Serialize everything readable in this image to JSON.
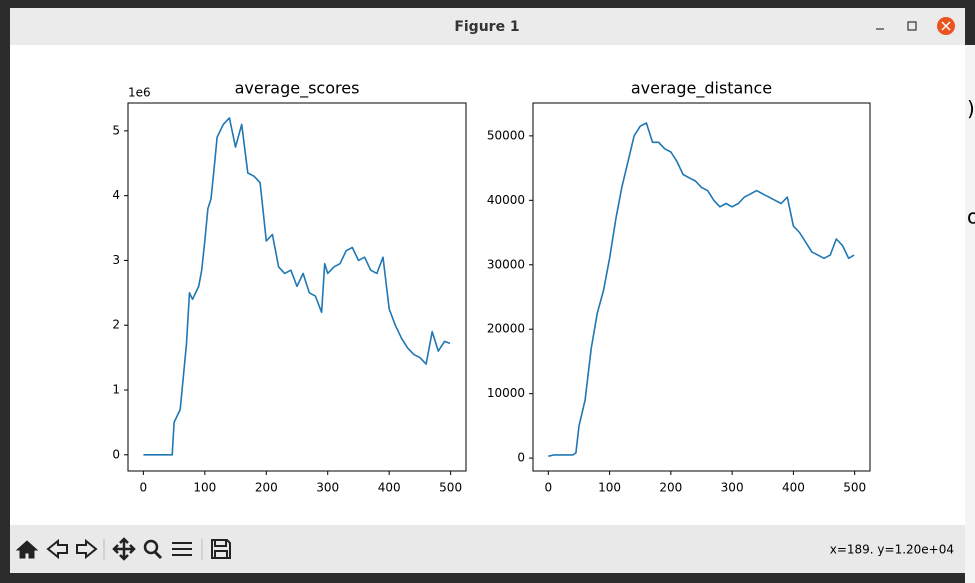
{
  "window": {
    "title": "Figure 1",
    "status": "x=189. y=1.20e+04",
    "background_fragments": [
      ")",
      "o"
    ]
  },
  "chart_data": [
    {
      "type": "line",
      "title": "average_scores",
      "offset_label": "1e6",
      "x": [
        0,
        10,
        20,
        30,
        40,
        47,
        50,
        60,
        65,
        70,
        75,
        80,
        90,
        95,
        100,
        105,
        110,
        115,
        120,
        130,
        140,
        150,
        160,
        170,
        180,
        190,
        200,
        210,
        220,
        230,
        240,
        250,
        260,
        270,
        280,
        290,
        295,
        300,
        310,
        320,
        330,
        340,
        350,
        360,
        370,
        380,
        390,
        400,
        410,
        420,
        430,
        440,
        450,
        460,
        470,
        480,
        490,
        499
      ],
      "series": [
        {
          "name": "average_scores",
          "color": "#1f77b4",
          "values": [
            0,
            0,
            0,
            0,
            0,
            0,
            0.5,
            0.7,
            1.2,
            1.7,
            2.5,
            2.4,
            2.6,
            2.85,
            3.3,
            3.8,
            3.95,
            4.4,
            4.9,
            5.1,
            5.2,
            4.75,
            5.1,
            4.35,
            4.3,
            4.2,
            3.3,
            3.4,
            2.9,
            2.8,
            2.85,
            2.6,
            2.8,
            2.5,
            2.45,
            2.2,
            2.95,
            2.8,
            2.9,
            2.95,
            3.15,
            3.2,
            3.0,
            3.05,
            2.85,
            2.8,
            3.05,
            2.25,
            2.0,
            1.8,
            1.65,
            1.55,
            1.5,
            1.4,
            1.9,
            1.6,
            1.75,
            1.72
          ]
        }
      ],
      "xlim": [
        -25,
        525
      ],
      "xticks": [
        0,
        100,
        200,
        300,
        400,
        500
      ],
      "ylim": [
        -0.25,
        5.43
      ],
      "yticks": [
        0,
        1,
        2,
        3,
        4,
        5
      ]
    },
    {
      "type": "line",
      "title": "average_distance",
      "x": [
        0,
        10,
        20,
        30,
        40,
        45,
        50,
        60,
        70,
        80,
        90,
        100,
        110,
        120,
        130,
        140,
        150,
        160,
        170,
        180,
        190,
        200,
        210,
        220,
        230,
        240,
        250,
        260,
        270,
        280,
        290,
        300,
        310,
        320,
        330,
        340,
        350,
        360,
        370,
        380,
        390,
        400,
        410,
        420,
        430,
        440,
        450,
        460,
        470,
        480,
        490,
        499
      ],
      "series": [
        {
          "name": "average_distance",
          "color": "#1f77b4",
          "values": [
            300,
            500,
            500,
            500,
            500,
            800,
            5000,
            9000,
            17000,
            22500,
            26000,
            31000,
            37000,
            42000,
            46000,
            50000,
            51500,
            52000,
            49000,
            49000,
            48000,
            47500,
            46000,
            44000,
            43500,
            43000,
            42000,
            41500,
            40000,
            39000,
            39500,
            39000,
            39500,
            40500,
            41000,
            41500,
            41000,
            40500,
            40000,
            39500,
            40500,
            36000,
            35000,
            33500,
            32000,
            31500,
            31000,
            31500,
            34000,
            33000,
            31000,
            31500
          ]
        }
      ],
      "xlim": [
        -25,
        525
      ],
      "xticks": [
        0,
        100,
        200,
        300,
        400,
        500
      ],
      "ylim": [
        -2000,
        55100
      ],
      "yticks": [
        0,
        10000,
        20000,
        30000,
        40000,
        50000
      ]
    }
  ]
}
